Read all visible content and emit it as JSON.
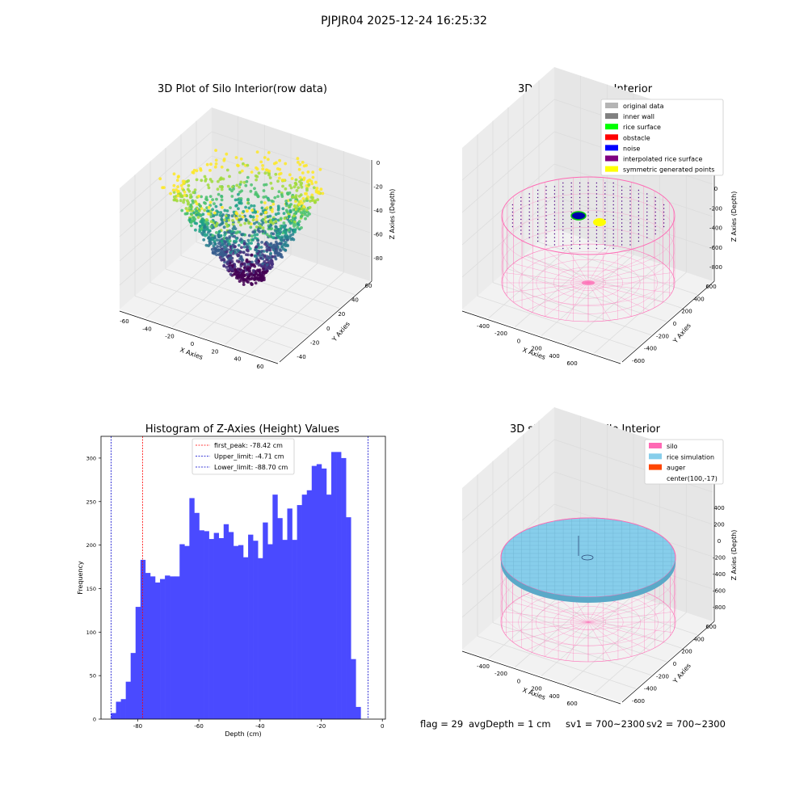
{
  "figure": {
    "suptitle": "PJPJR04 2025-12-24 16:25:32",
    "footer": {
      "flag": "flag = 29",
      "avg_depth": "avgDepth = 1 cm",
      "sv1": "sv1 = 700~2300",
      "sv2": "sv2 = 700~2300"
    }
  },
  "plot_raw": {
    "title": "3D Plot of Silo Interior(row data)",
    "xlabel": "X Axies",
    "ylabel": "Y Axies",
    "zlabel": "Z Axies (Depth)",
    "xticks": [
      "-60",
      "-40",
      "-20",
      "0",
      "20",
      "40",
      "60"
    ],
    "yticks": [
      "-40",
      "-20",
      "0",
      "20",
      "40",
      "60"
    ],
    "zticks": [
      "0",
      "-20",
      "-40",
      "-60",
      "-80"
    ]
  },
  "plot_classify": {
    "title": "3D classify of Silo Interior",
    "xlabel": "X Axies",
    "ylabel": "Y Axies",
    "zlabel": "Z Axies (Depth)",
    "xticks": [
      "-400",
      "-200",
      "0",
      "200",
      "400",
      "600"
    ],
    "yticks": [
      "-600",
      "-400",
      "-200",
      "0",
      "200",
      "400",
      "600"
    ],
    "zticks": [
      "200",
      "0",
      "-200",
      "-400",
      "-600",
      "-800"
    ],
    "legend": [
      {
        "label": "original data",
        "color": "#b4b4b4"
      },
      {
        "label": "inner wall",
        "color": "#808080"
      },
      {
        "label": "rice surface",
        "color": "#00ff00"
      },
      {
        "label": "obstacle",
        "color": "#ff0000"
      },
      {
        "label": "noise",
        "color": "#0000ff"
      },
      {
        "label": "interpolated rice surface",
        "color": "#800080"
      },
      {
        "label": "symmetric generated points",
        "color": "#ffff00"
      }
    ]
  },
  "plot_sim": {
    "title": "3D simulation of Silo Interior",
    "xlabel": "X Axies",
    "ylabel": "Y Axies",
    "zlabel": "Z Axies (Depth)",
    "xticks": [
      "-400",
      "-200",
      "0",
      "200",
      "400",
      "600"
    ],
    "yticks": [
      "-600",
      "-400",
      "-200",
      "0",
      "200",
      "400",
      "600"
    ],
    "zticks": [
      "400",
      "200",
      "0",
      "-200",
      "-400",
      "-600",
      "-800"
    ],
    "legend": [
      {
        "label": "silo",
        "color": "#ff69b4"
      },
      {
        "label": "rice simulation",
        "color": "#87ceeb"
      },
      {
        "label": "auger",
        "color": "#ff4500"
      },
      {
        "label": "center(100,-17)",
        "color": ""
      }
    ]
  },
  "chart_data": {
    "type": "bar",
    "title": "Histogram of Z-Axies (Height) Values",
    "xlabel": "Depth (cm)",
    "ylabel": "Frequency",
    "xlim": [
      -92,
      1
    ],
    "ylim": [
      0,
      325
    ],
    "xticks": [
      -80,
      -60,
      -40,
      -20,
      0
    ],
    "yticks": [
      0,
      50,
      100,
      150,
      200,
      250,
      300
    ],
    "bar_color": "#4a4aff",
    "bin_start": -88.7,
    "bin_width": 1.6,
    "values": [
      7,
      20,
      23,
      43,
      76,
      129,
      183,
      168,
      164,
      157,
      161,
      165,
      164,
      164,
      201,
      199,
      254,
      237,
      217,
      216,
      207,
      214,
      208,
      224,
      215,
      199,
      200,
      186,
      212,
      205,
      185,
      226,
      201,
      258,
      231,
      206,
      242,
      206,
      246,
      258,
      263,
      291,
      293,
      288,
      258,
      307,
      307,
      300,
      232,
      69,
      14
    ],
    "vlines": [
      {
        "label": "first_peak: -78.42 cm",
        "x": -78.42,
        "color": "#ff0000"
      },
      {
        "label": "Upper_limit: -4.71 cm",
        "x": -4.71,
        "color": "#0000cc"
      },
      {
        "label": "Lower_limit: -88.70 cm",
        "x": -88.7,
        "color": "#0000cc"
      }
    ]
  }
}
